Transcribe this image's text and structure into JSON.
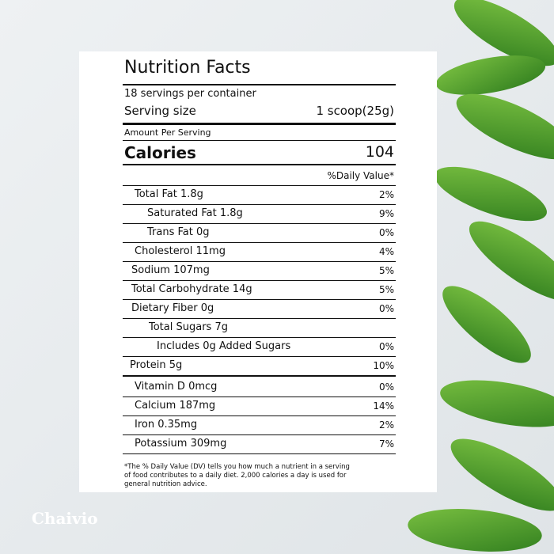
{
  "title": "Nutrition Facts",
  "servings": "18 servings per container",
  "serving_size": {
    "label": "Serving size",
    "value": "1 scoop(25g)"
  },
  "amount_per_serving": "Amount Per Serving",
  "calories": {
    "label": "Calories",
    "value": "104"
  },
  "daily_value_header": "%Daily Value*",
  "nutrients": [
    {
      "name": "Total Fat 1.8g",
      "dv": "2%"
    },
    {
      "name": "Saturated Fat 1.8g",
      "dv": "9%"
    },
    {
      "name": "Trans Fat 0g",
      "dv": "0%"
    },
    {
      "name": "Cholesterol 11mg",
      "dv": "4%"
    },
    {
      "name": "Sodium 107mg",
      "dv": "5%"
    },
    {
      "name": "Total Carbohydrate 14g",
      "dv": "5%"
    },
    {
      "name": "Dietary Fiber 0g",
      "dv": "0%"
    },
    {
      "name": "Total Sugars 7g"
    },
    {
      "name": "Includes 0g Added Sugars",
      "dv": "0%"
    },
    {
      "name": "Protein 5g",
      "dv": "10%"
    },
    {
      "name": "Vitamin D 0mcg",
      "dv": "0%"
    },
    {
      "name": "Calcium 187mg",
      "dv": "14%"
    },
    {
      "name": "Iron 0.35mg",
      "dv": "2%"
    },
    {
      "name": "Potassium 309mg",
      "dv": "7%"
    }
  ],
  "footnote": [
    "*The % Daily Value (DV) tells you how much a nutrient in a serving",
    "of food contributes to a daily diet. 2,000 calories a day is used for",
    "general nutrition advice."
  ],
  "brand": "Chaivio"
}
